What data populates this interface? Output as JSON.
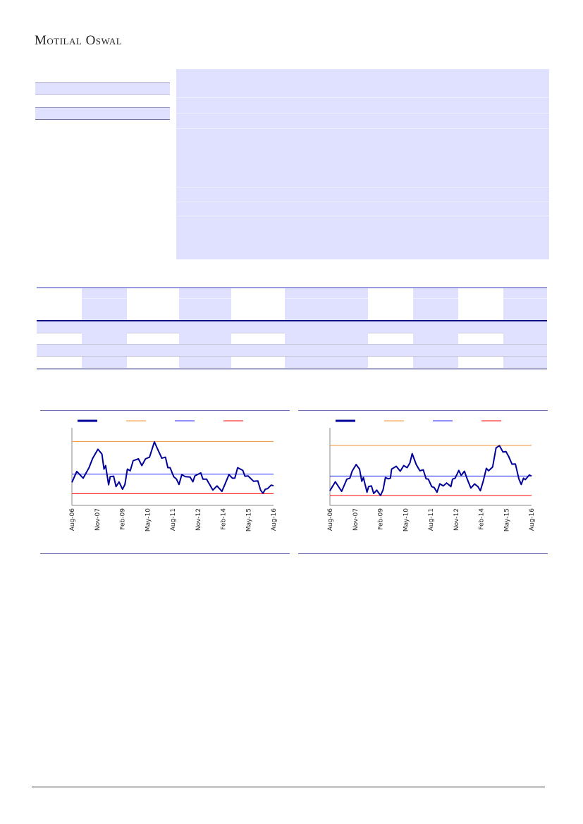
{
  "header": {
    "logo_text": "Motilal Oswal"
  },
  "colors": {
    "panel": "#e0e0ff",
    "rule": "#6a6ab0",
    "series": "#000099",
    "upper_band": "#f0902a",
    "mean": "#2020ff",
    "lower_band": "#ff0000"
  },
  "chart_data": [
    {
      "type": "line",
      "x_tick_labels": [
        "Aug-06",
        "Nov-07",
        "Feb-09",
        "May-10",
        "Aug-11",
        "Nov-12",
        "Feb-14",
        "May-15",
        "Aug-16"
      ],
      "x_range": [
        2006.58,
        2016.58
      ],
      "ylim": [
        0,
        100
      ],
      "y_ticks_shown": false,
      "grid": false,
      "legend": "top",
      "reference_lines": {
        "upper": 82.4,
        "mean": 40.3,
        "lower": 15.1
      },
      "series": [
        {
          "x": [
            2006.58,
            2006.82,
            2007.14,
            2007.43,
            2007.61,
            2007.87,
            2008.07,
            2008.17,
            2008.25,
            2008.4,
            2008.48,
            2008.65,
            2008.77,
            2008.92,
            2009.09,
            2009.21,
            2009.33,
            2009.47,
            2009.62,
            2009.88,
            2010.05,
            2010.23,
            2010.43,
            2010.67,
            2010.87,
            2011.04,
            2011.22,
            2011.34,
            2011.45,
            2011.63,
            2011.77,
            2011.89,
            2012.03,
            2012.21,
            2012.44,
            2012.58,
            2012.68,
            2012.97,
            2013.08,
            2013.26,
            2013.57,
            2013.78,
            2014.02,
            2014.19,
            2014.37,
            2014.54,
            2014.66,
            2014.8,
            2015.06,
            2015.16,
            2015.32,
            2015.59,
            2015.8,
            2015.94,
            2016.06,
            2016.17,
            2016.29,
            2016.46,
            2016.58
          ],
          "y": [
            29.7,
            43.8,
            35.1,
            48.6,
            60.8,
            72.4,
            66.2,
            46.8,
            51.4,
            26.5,
            37.0,
            37.6,
            24.3,
            30.3,
            20.8,
            27.0,
            46.8,
            44.6,
            57.6,
            60.0,
            51.4,
            60.0,
            62.2,
            81.9,
            70.3,
            60.8,
            62.2,
            48.6,
            48.6,
            37.0,
            33.8,
            27.0,
            39.7,
            37.0,
            36.5,
            30.5,
            38.1,
            41.9,
            33.8,
            33.8,
            19.7,
            25.1,
            18.1,
            28.4,
            39.7,
            35.1,
            35.1,
            48.6,
            45.1,
            37.6,
            37.9,
            31.1,
            31.6,
            19.5,
            15.7,
            20.8,
            21.6,
            26.2,
            25.4
          ]
        }
      ]
    },
    {
      "type": "line",
      "x_tick_labels": [
        "Aug-06",
        "Nov-07",
        "Feb-09",
        "May-10",
        "Aug-11",
        "Nov-12",
        "Feb-14",
        "May-15",
        "Aug-16"
      ],
      "x_range": [
        2006.58,
        2016.58
      ],
      "ylim": [
        0,
        100
      ],
      "y_ticks_shown": false,
      "grid": false,
      "legend": "top",
      "reference_lines": {
        "upper": 77.6,
        "mean": 37.8,
        "lower": 12.7
      },
      "series": [
        {
          "x": [
            2006.58,
            2006.85,
            2007.16,
            2007.42,
            2007.57,
            2007.68,
            2007.88,
            2008.05,
            2008.16,
            2008.24,
            2008.42,
            2008.5,
            2008.64,
            2008.75,
            2008.9,
            2009.09,
            2009.22,
            2009.33,
            2009.47,
            2009.58,
            2009.64,
            2009.87,
            2010.07,
            2010.24,
            2010.41,
            2010.55,
            2010.66,
            2010.86,
            2011.04,
            2011.21,
            2011.35,
            2011.46,
            2011.63,
            2011.75,
            2011.89,
            2012.03,
            2012.2,
            2012.37,
            2012.58,
            2012.66,
            2012.79,
            2012.97,
            2013.09,
            2013.25,
            2013.39,
            2013.57,
            2013.76,
            2013.92,
            2014.04,
            2014.19,
            2014.34,
            2014.45,
            2014.65,
            2014.82,
            2014.99,
            2015.16,
            2015.31,
            2015.44,
            2015.61,
            2015.78,
            2015.95,
            2016.07,
            2016.18,
            2016.27,
            2016.47,
            2016.58
          ],
          "y": [
            18.9,
            30.5,
            18.1,
            33.8,
            35.1,
            44.1,
            52.7,
            46.8,
            31.1,
            35.9,
            17.0,
            24.3,
            25.1,
            15.4,
            19.7,
            12.7,
            20.3,
            35.9,
            34.3,
            35.1,
            46.8,
            50.5,
            44.1,
            51.4,
            48.6,
            54.9,
            66.8,
            52.7,
            44.6,
            45.9,
            34.3,
            33.8,
            24.3,
            23.0,
            17.0,
            27.8,
            25.1,
            28.9,
            24.3,
            33.8,
            35.1,
            45.1,
            38.6,
            44.1,
            33.8,
            22.4,
            27.6,
            24.3,
            18.9,
            31.6,
            47.8,
            44.6,
            49.5,
            74.3,
            77.0,
            68.9,
            69.5,
            63.5,
            53.2,
            53.5,
            34.3,
            27.0,
            35.1,
            33.2,
            39.2,
            37.8
          ]
        }
      ]
    }
  ]
}
